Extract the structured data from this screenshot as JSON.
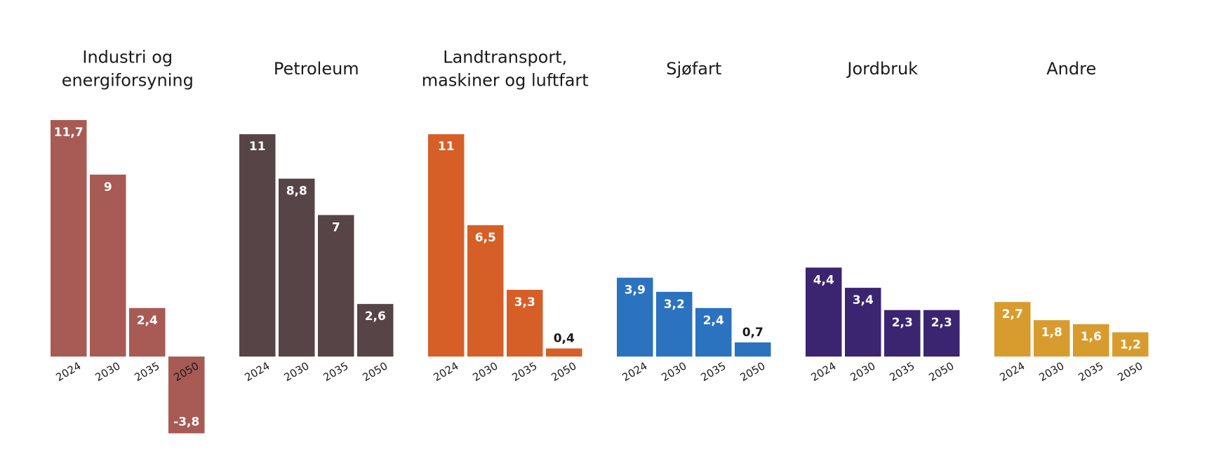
{
  "chart_data": [
    {
      "type": "bar",
      "title": [
        "Industri og",
        "energiforsyning"
      ],
      "categories": [
        "2024",
        "2030",
        "2035",
        "2050"
      ],
      "values": [
        11.7,
        9,
        2.4,
        -3.8
      ],
      "value_labels": [
        "11,7",
        "9",
        "2,4",
        "-3,8"
      ],
      "color": "#a85a55"
    },
    {
      "type": "bar",
      "title": [
        "Petroleum"
      ],
      "categories": [
        "2024",
        "2030",
        "2035",
        "2050"
      ],
      "values": [
        11,
        8.8,
        7,
        2.6
      ],
      "value_labels": [
        "11",
        "8,8",
        "7",
        "2,6"
      ],
      "color": "#574446"
    },
    {
      "type": "bar",
      "title": [
        "Landtransport,",
        "maskiner og luftfart"
      ],
      "categories": [
        "2024",
        "2030",
        "2035",
        "2050"
      ],
      "values": [
        11,
        6.5,
        3.3,
        0.4
      ],
      "value_labels": [
        "11",
        "6,5",
        "3,3",
        "0,4"
      ],
      "color": "#d65f27"
    },
    {
      "type": "bar",
      "title": [
        "Sjøfart"
      ],
      "categories": [
        "2024",
        "2030",
        "2035",
        "2050"
      ],
      "values": [
        3.9,
        3.2,
        2.4,
        0.7
      ],
      "value_labels": [
        "3,9",
        "3,2",
        "2,4",
        "0,7"
      ],
      "color": "#2b72bf"
    },
    {
      "type": "bar",
      "title": [
        "Jordbruk"
      ],
      "categories": [
        "2024",
        "2030",
        "2035",
        "2050"
      ],
      "values": [
        4.4,
        3.4,
        2.3,
        2.3
      ],
      "value_labels": [
        "4,4",
        "3,4",
        "2,3",
        "2,3"
      ],
      "color": "#3b2470"
    },
    {
      "type": "bar",
      "title": [
        "Andre"
      ],
      "categories": [
        "2024",
        "2030",
        "2035",
        "2050"
      ],
      "values": [
        2.7,
        1.8,
        1.6,
        1.2
      ],
      "value_labels": [
        "2,7",
        "1,8",
        "1,6",
        "1,2"
      ],
      "color": "#d89c2e"
    }
  ]
}
